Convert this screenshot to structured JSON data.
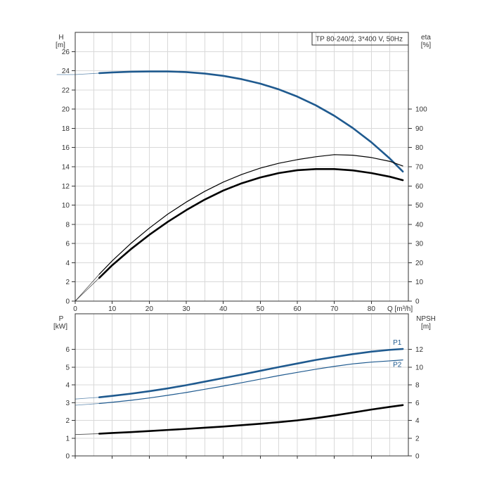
{
  "chart_data": [
    {
      "type": "line",
      "title": "TP 80-240/2, 3*400 V, 50Hz",
      "xlabel": "Q [m³/h]",
      "xlim": [
        0,
        90
      ],
      "x_ticks": [
        0,
        10,
        20,
        30,
        40,
        50,
        60,
        70,
        80
      ],
      "grid": true,
      "left_axis": {
        "label": "H",
        "unit": "[m]",
        "ylim": [
          0,
          28
        ],
        "ticks": [
          0,
          2,
          4,
          6,
          8,
          10,
          12,
          14,
          16,
          18,
          20,
          22,
          24,
          26
        ]
      },
      "right_axis": {
        "label": "eta",
        "unit": "[%]",
        "ylim": [
          0,
          140
        ],
        "ticks": [
          0,
          10,
          20,
          30,
          40,
          50,
          60,
          70,
          80,
          90,
          100
        ]
      },
      "series": [
        {
          "axis": "left",
          "color": "#1f5a8f",
          "weight": "thick",
          "x": [
            -5,
            0,
            6.5,
            10,
            15,
            20,
            25,
            30,
            35,
            40,
            45,
            50,
            55,
            60,
            65,
            70,
            75,
            80,
            85,
            88.5
          ],
          "y": [
            23.6,
            23.6,
            23.75,
            23.83,
            23.9,
            23.93,
            23.93,
            23.86,
            23.71,
            23.47,
            23.12,
            22.66,
            22.06,
            21.31,
            20.4,
            19.31,
            18.03,
            16.55,
            14.85,
            13.5
          ],
          "dashed_until_x": 6.5
        },
        {
          "axis": "right",
          "color": "#000000",
          "weight": "thin",
          "x": [
            0,
            6.5,
            10,
            15,
            20,
            25,
            30,
            35,
            40,
            45,
            50,
            55,
            60,
            65,
            70,
            75,
            80,
            85,
            88.5
          ],
          "y": [
            0,
            14,
            21,
            30,
            38,
            45.3,
            51.6,
            57.2,
            62,
            66,
            69.3,
            71.8,
            73.7,
            75.2,
            76.3,
            76,
            74.8,
            72.8,
            70.4
          ],
          "dashed_until_x": 6.5
        },
        {
          "axis": "right",
          "color": "#000000",
          "weight": "thick",
          "x": [
            0,
            6.5,
            10,
            15,
            20,
            25,
            30,
            35,
            40,
            45,
            50,
            55,
            60,
            65,
            70,
            75,
            80,
            85,
            88.5
          ],
          "y": [
            0,
            12.1,
            18.7,
            27,
            34.5,
            41.3,
            47.4,
            52.9,
            57.6,
            61.4,
            64.4,
            66.7,
            68.2,
            68.8,
            68.8,
            68.1,
            66.7,
            64.8,
            63
          ],
          "dashed_until_x": 6.5
        }
      ]
    },
    {
      "type": "line",
      "xlim": [
        0,
        90
      ],
      "x_ticks": [
        0,
        10,
        20,
        30,
        40,
        50,
        60,
        70,
        80
      ],
      "grid": true,
      "left_axis": {
        "label": "P",
        "unit": "[kW]",
        "ylim": [
          0,
          8
        ],
        "ticks": [
          0,
          1,
          2,
          3,
          4,
          5,
          6
        ]
      },
      "right_axis": {
        "label": "NPSH",
        "unit": "[m]",
        "ylim": [
          0,
          16
        ],
        "ticks": [
          0,
          2,
          4,
          6,
          8,
          10,
          12
        ]
      },
      "series": [
        {
          "name": "P1",
          "axis": "left",
          "color": "#1f5a8f",
          "weight": "thick",
          "x": [
            0,
            6.5,
            10,
            15,
            20,
            25,
            30,
            35,
            40,
            45,
            50,
            55,
            60,
            65,
            70,
            75,
            80,
            85,
            88.5
          ],
          "y": [
            3.2,
            3.3,
            3.38,
            3.5,
            3.64,
            3.8,
            3.98,
            4.18,
            4.38,
            4.58,
            4.79,
            5,
            5.2,
            5.4,
            5.57,
            5.73,
            5.87,
            5.97,
            6.02
          ],
          "dashed_until_x": 6.5
        },
        {
          "name": "P2",
          "axis": "left",
          "color": "#1f5a8f",
          "weight": "thin",
          "x": [
            0,
            6.5,
            10,
            15,
            20,
            25,
            30,
            35,
            40,
            45,
            50,
            55,
            60,
            65,
            70,
            75,
            80,
            85,
            88.5
          ],
          "y": [
            2.85,
            2.95,
            3.02,
            3.13,
            3.26,
            3.41,
            3.57,
            3.75,
            3.93,
            4.12,
            4.32,
            4.52,
            4.7,
            4.88,
            5.04,
            5.18,
            5.28,
            5.35,
            5.4
          ],
          "dashed_until_x": 6.5
        },
        {
          "axis": "right",
          "color": "#000000",
          "weight": "thick",
          "x": [
            0,
            6.5,
            10,
            15,
            20,
            25,
            30,
            35,
            40,
            45,
            50,
            55,
            60,
            65,
            70,
            75,
            80,
            85,
            88.5
          ],
          "y": [
            2.4,
            2.5,
            2.58,
            2.68,
            2.8,
            2.92,
            3.04,
            3.17,
            3.3,
            3.46,
            3.62,
            3.8,
            4,
            4.25,
            4.55,
            4.88,
            5.22,
            5.52,
            5.72
          ],
          "dashed_until_x": 6.5
        }
      ]
    }
  ]
}
